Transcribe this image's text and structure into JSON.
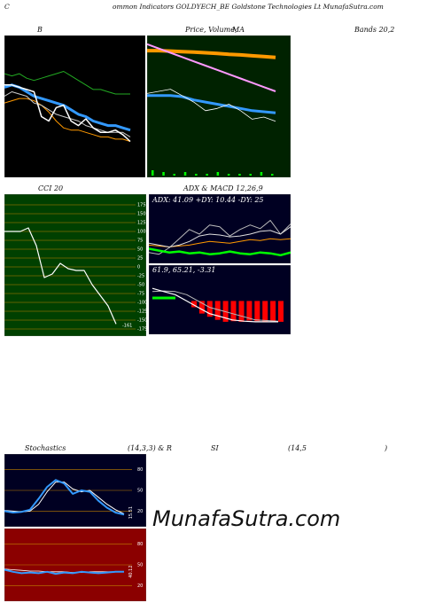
{
  "header": {
    "c_mark": "C",
    "title": "ommon  Indicators GOLDYECH_BE Goldstone   Technologies Lt MunafaSutra.com"
  },
  "labels": {
    "b": "B",
    "price": "Price,  Volume,",
    "ma": "MA",
    "bands": "Bands 20,2",
    "cci": "CCI 20",
    "adx": "ADX   & MACD 12,26,9",
    "stoch": "Stochastics",
    "stoch_params": "(14,3,3) & R",
    "si": "SI",
    "rsi_params": "(14,5",
    "paren": ")"
  },
  "watermark": "MunafaSutra.com",
  "colors": {
    "panel_black": "#000000",
    "panel_green": "#002200",
    "panel_olive": "#004000",
    "panel_navy": "#000022",
    "panel_red": "#8b0000",
    "blue": "#3399ff",
    "green_line": "#22aa22",
    "bright_green": "#00ff00",
    "orange": "#ff9900",
    "pink": "#ff99ff",
    "red": "#ff0000",
    "white": "#ffffff",
    "gridline": "#c08000"
  },
  "chart_data": [
    {
      "type": "line",
      "name": "Bollinger Bands",
      "series": [
        {
          "name": "upper",
          "values": [
            87,
            86,
            87,
            85,
            84,
            85,
            86,
            87,
            88,
            86,
            84,
            82,
            80,
            80,
            79,
            78,
            78,
            78
          ]
        },
        {
          "name": "middle",
          "values": [
            81,
            82,
            81,
            79,
            77,
            76,
            75,
            74,
            73,
            71,
            69,
            68,
            66,
            65,
            64,
            64,
            63,
            62
          ]
        },
        {
          "name": "lower",
          "values": [
            74,
            75,
            76,
            76,
            75,
            73,
            70,
            66,
            63,
            62,
            62,
            61,
            60,
            59,
            59,
            58,
            58,
            57
          ]
        },
        {
          "name": "close",
          "values": [
            82,
            82,
            81,
            80,
            79,
            68,
            66,
            72,
            73,
            66,
            64,
            67,
            63,
            61,
            61,
            62,
            60,
            57
          ]
        },
        {
          "name": "ma",
          "values": [
            77,
            79,
            78,
            77,
            74,
            73,
            71,
            69,
            68,
            67,
            66,
            64,
            63,
            62,
            61,
            61,
            61,
            59
          ]
        }
      ]
    },
    {
      "type": "line",
      "name": "Price, Volume, MA",
      "series": [
        {
          "name": "long-ma",
          "values": [
            95,
            95,
            94.8,
            94.5,
            94.3,
            94,
            93.7,
            93.3,
            93,
            92.6,
            92.2,
            91.8
          ]
        },
        {
          "name": "pink-ma",
          "values": [
            98,
            96,
            94,
            92,
            90,
            88,
            86,
            84,
            82,
            80,
            78,
            76
          ]
        },
        {
          "name": "blue-ma",
          "values": [
            74,
            74,
            74,
            73.5,
            72,
            71,
            70,
            69,
            68,
            67,
            66.5,
            66
          ]
        },
        {
          "name": "close",
          "values": [
            75,
            76,
            77,
            74,
            71,
            67,
            68,
            70,
            67,
            63,
            64,
            62
          ]
        },
        {
          "name": "volume",
          "values": [
            3,
            2,
            1,
            2,
            1,
            1,
            2,
            1,
            1,
            1,
            2,
            1
          ]
        }
      ]
    },
    {
      "type": "line",
      "name": "CCI",
      "yticks": [
        175,
        150,
        125,
        100,
        75,
        50,
        25,
        0,
        -25,
        -50,
        -75,
        -100,
        -125,
        -150,
        -175
      ],
      "last_value_label": "-161",
      "series": [
        {
          "name": "cci",
          "values": [
            100,
            100,
            100,
            110,
            60,
            -30,
            -20,
            10,
            -5,
            -10,
            -10,
            -50,
            -80,
            -110,
            -161
          ]
        }
      ]
    },
    {
      "type": "line",
      "name": "ADX",
      "readout": "ADX: 41.09  +DY: 10.44  -DY: 25",
      "series": [
        {
          "name": "adx",
          "values": [
            20,
            18,
            16,
            18,
            22,
            28,
            30,
            29,
            27,
            28,
            30,
            33,
            34,
            30,
            38
          ]
        },
        {
          "name": "+di",
          "values": [
            14,
            12,
            10,
            11,
            9,
            10,
            8,
            9,
            11,
            9,
            8,
            10,
            9,
            7,
            10
          ]
        },
        {
          "name": "-di",
          "values": [
            18,
            17,
            16,
            17,
            18,
            20,
            22,
            21,
            20,
            22,
            24,
            23,
            25,
            24,
            25
          ]
        },
        {
          "name": "dx",
          "values": [
            10,
            8,
            15,
            25,
            35,
            30,
            40,
            38,
            28,
            35,
            40,
            36,
            45,
            30,
            41
          ]
        }
      ]
    },
    {
      "type": "bar",
      "name": "MACD",
      "readout": "61.9,  65.21,  -3.31",
      "series": [
        {
          "name": "macd",
          "values": [
            2,
            1.5,
            1,
            0,
            -1,
            -2,
            -2.5,
            -3,
            -3.2,
            -3.3,
            -3.3,
            -3.3
          ]
        },
        {
          "name": "signal",
          "values": [
            1.5,
            1.6,
            1.5,
            1,
            0,
            -1,
            -1.5,
            -2,
            -2.5,
            -3,
            -3.1,
            -3.2
          ]
        },
        {
          "name": "histogram",
          "values": [
            -1,
            -2,
            -2.5,
            -3,
            -3.3,
            -3.2,
            -3.3,
            -3.1,
            -3.2,
            -3.3,
            -3.2,
            -3.31
          ]
        }
      ]
    },
    {
      "type": "line",
      "name": "Stochastics",
      "yticks": [
        80,
        50,
        20
      ],
      "last_value_label": "15.51",
      "series": [
        {
          "name": "%k",
          "values": [
            20,
            18,
            19,
            22,
            38,
            55,
            65,
            60,
            45,
            50,
            48,
            35,
            25,
            18,
            15
          ]
        },
        {
          "name": "%d",
          "values": [
            21,
            20,
            19,
            20,
            30,
            48,
            62,
            62,
            52,
            48,
            50,
            40,
            30,
            22,
            16
          ]
        }
      ]
    },
    {
      "type": "line",
      "name": "RSI",
      "yticks": [
        80,
        50,
        20
      ],
      "last_value_label": "40.12",
      "series": [
        {
          "name": "rsi",
          "values": [
            43,
            40,
            38,
            39,
            38,
            40,
            37,
            39,
            38,
            40,
            39,
            38,
            39,
            40,
            40
          ]
        },
        {
          "name": "mrsi",
          "values": [
            44,
            43,
            42,
            41,
            41,
            40,
            40,
            40,
            39,
            39,
            40,
            40,
            40,
            40,
            40
          ]
        }
      ]
    }
  ]
}
